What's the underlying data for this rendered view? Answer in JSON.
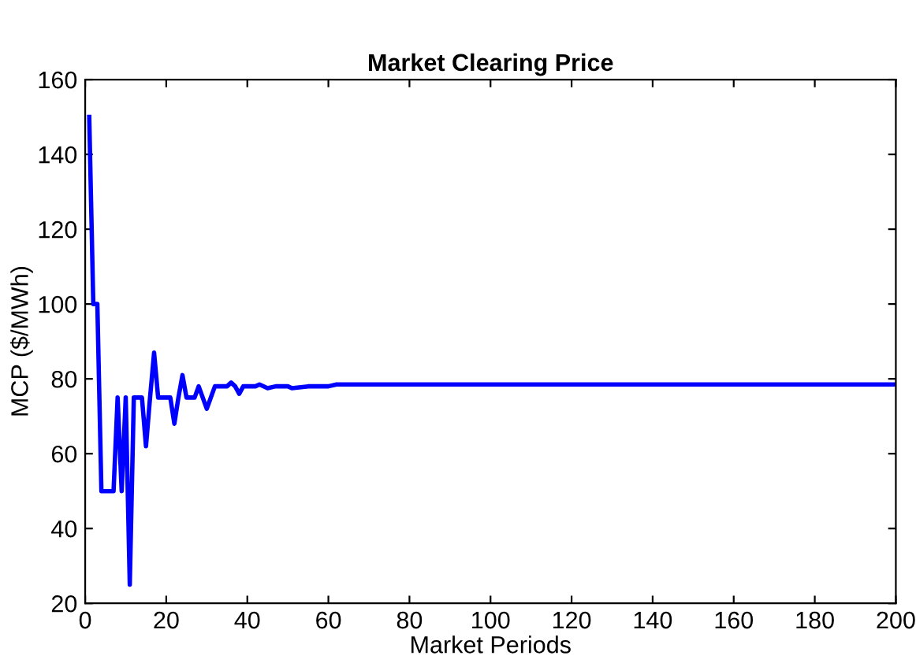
{
  "chart_data": {
    "type": "line",
    "title": "Market Clearing Price",
    "xlabel": "Market Periods",
    "ylabel": "MCP ($/MWh)",
    "xlim": [
      0,
      200
    ],
    "xticks": [
      0,
      20,
      40,
      60,
      80,
      100,
      120,
      140,
      160,
      180,
      200
    ],
    "ylim": [
      20,
      160
    ],
    "yticks": [
      20,
      40,
      60,
      80,
      100,
      120,
      140,
      160
    ],
    "grid": false,
    "legend": false,
    "series": [
      {
        "color": "#0000ff",
        "x": [
          1,
          2,
          3,
          4,
          5,
          6,
          7,
          8,
          9,
          10,
          11,
          12,
          13,
          14,
          15,
          16,
          17,
          18,
          19,
          20,
          21,
          22,
          23,
          24,
          25,
          26,
          27,
          28,
          29,
          30,
          31,
          32,
          33,
          34,
          35,
          36,
          37,
          38,
          39,
          40,
          42,
          43,
          45,
          47,
          50,
          51,
          55,
          60,
          62,
          65,
          80,
          100,
          150,
          200
        ],
        "values": [
          150,
          100,
          100,
          50,
          50,
          50,
          50,
          75,
          50,
          75,
          25,
          75,
          75,
          75,
          62,
          75,
          87,
          75,
          75,
          75,
          75,
          68,
          75,
          81,
          75,
          75,
          75,
          78,
          75,
          72,
          75,
          78,
          78,
          78,
          78,
          79,
          78,
          76,
          78,
          78,
          78,
          78.5,
          77.5,
          78,
          78,
          77.5,
          78,
          78,
          78.5,
          78.5,
          78.5,
          78.5,
          78.5,
          78.5
        ]
      }
    ]
  }
}
